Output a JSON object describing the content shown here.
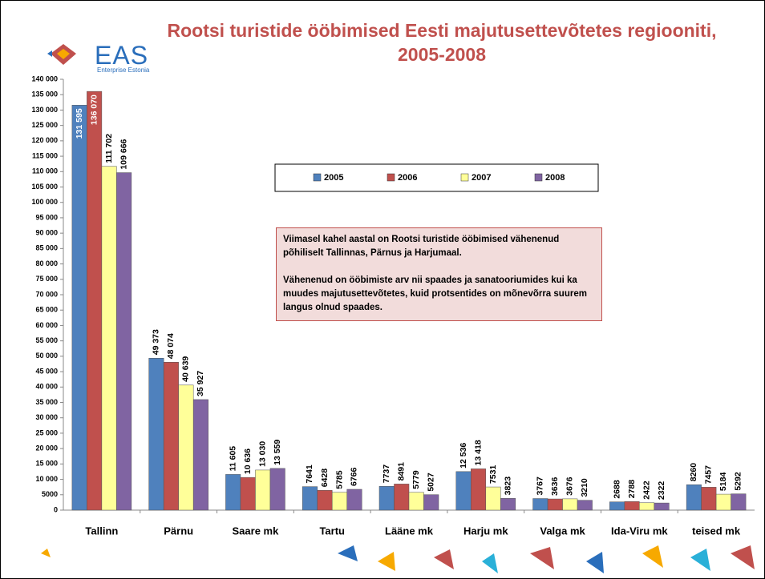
{
  "logo": {
    "name": "EAS",
    "subtitle": "Enterprise Estonia"
  },
  "chart_data": {
    "type": "bar",
    "title": "Rootsi turistide ööbimised Eesti majutusettevõtetes regiooniti, 2005-2008",
    "annotation": [
      "Viimasel kahel aastal on Rootsi turistide ööbimised vähenenud põhiliselt Tallinnas, Pärnus ja Harjumaal.",
      "Vähenenud on ööbimiste arv nii spaades ja sanatooriumides kui ka muudes majutusettevõtetes, kuid  protsentides on mõnevõrra suurem langus olnud spaades."
    ],
    "categories": [
      "Tallinn",
      "Pärnu",
      "Saare mk",
      "Tartu",
      "Lääne mk",
      "Harju mk",
      "Valga mk",
      "Ida-Viru mk",
      "teised mk"
    ],
    "series": [
      {
        "name": "2005",
        "color": "#4f81bd",
        "values": [
          131595,
          49373,
          11605,
          7641,
          7737,
          12536,
          3767,
          2688,
          8260
        ],
        "value_labels": [
          "131 595",
          "49 373",
          "11 605",
          "7641",
          "7737",
          "12 536",
          "3767",
          "2688",
          "8260"
        ]
      },
      {
        "name": "2006",
        "color": "#c0504d",
        "values": [
          136070,
          48074,
          10636,
          6428,
          8491,
          13418,
          3636,
          2788,
          7457
        ],
        "value_labels": [
          "136 070",
          "48 074",
          "10 636",
          "6428",
          "8491",
          "13 418",
          "3636",
          "2788",
          "7457"
        ]
      },
      {
        "name": "2007",
        "color": "#ffff99",
        "values": [
          111702,
          40639,
          13030,
          5785,
          5779,
          7531,
          3676,
          2422,
          5184
        ],
        "value_labels": [
          "111 702",
          "40 639",
          "13 030",
          "5785",
          "5779",
          "7531",
          "3676",
          "2422",
          "5184"
        ]
      },
      {
        "name": "2008",
        "color": "#8064a2",
        "values": [
          109666,
          35927,
          13559,
          6766,
          5027,
          3823,
          3210,
          2322,
          5292
        ],
        "value_labels": [
          "109 666",
          "35 927",
          "13 559",
          "6766",
          "5027",
          "3823",
          "3210",
          "2322",
          "5292"
        ]
      }
    ],
    "ylim": [
      0,
      140000
    ],
    "yticks": [
      0,
      5000,
      {
        "value": 10000,
        "label": "10 000"
      },
      {
        "value": 15000,
        "label": "15 000"
      },
      {
        "value": 20000,
        "label": "20 000"
      },
      {
        "value": 25000,
        "label": "25 000"
      },
      {
        "value": 30000,
        "label": "30 000"
      },
      {
        "value": 35000,
        "label": "35 000"
      },
      {
        "value": 40000,
        "label": "40 000"
      },
      {
        "value": 45000,
        "label": "45 000"
      },
      {
        "value": 50000,
        "label": "50 000"
      },
      {
        "value": 55000,
        "label": "55 000"
      },
      {
        "value": 60000,
        "label": "60 000"
      },
      {
        "value": 65000,
        "label": "65 000"
      },
      {
        "value": 70000,
        "label": "70 000"
      },
      {
        "value": 75000,
        "label": "75 000"
      },
      {
        "value": 80000,
        "label": "80 000"
      },
      {
        "value": 85000,
        "label": "85 000"
      },
      {
        "value": 90000,
        "label": "90 000"
      },
      {
        "value": 95000,
        "label": "95 000"
      },
      {
        "value": 100000,
        "label": "100 000"
      },
      {
        "value": 105000,
        "label": "105 000"
      },
      {
        "value": 110000,
        "label": "110 000"
      },
      {
        "value": 115000,
        "label": "115 000"
      },
      {
        "value": 120000,
        "label": "120 000"
      },
      {
        "value": 125000,
        "label": "125 000"
      },
      {
        "value": 130000,
        "label": "130 000"
      },
      {
        "value": 135000,
        "label": "135 000"
      },
      {
        "value": 140000,
        "label": "140 000"
      }
    ],
    "grid": false
  }
}
